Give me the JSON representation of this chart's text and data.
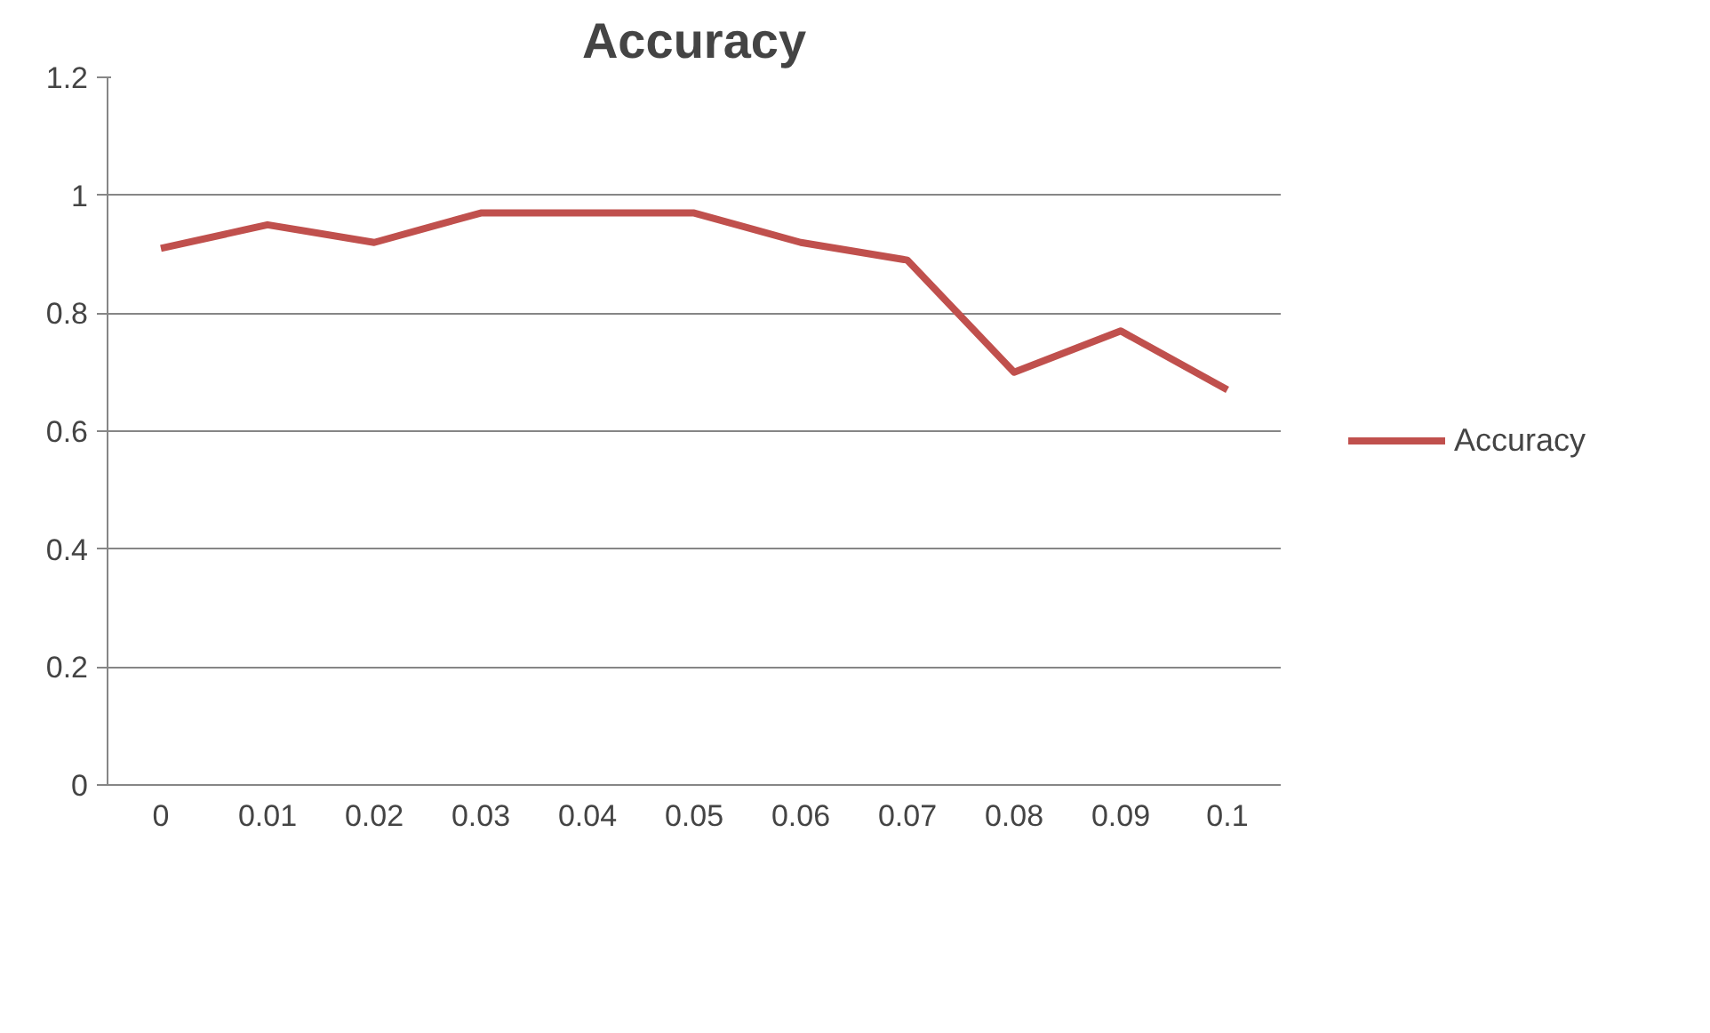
{
  "chart_data": {
    "type": "line",
    "title": "Accuracy",
    "categories": [
      "0",
      "0.01",
      "0.02",
      "0.03",
      "0.04",
      "0.05",
      "0.06",
      "0.07",
      "0.08",
      "0.09",
      "0.1"
    ],
    "series": [
      {
        "name": "Accuracy",
        "color": "#c0504d",
        "values": [
          0.91,
          0.95,
          0.92,
          0.97,
          0.97,
          0.97,
          0.92,
          0.89,
          0.7,
          0.77,
          0.67
        ]
      }
    ],
    "ylim": [
      0,
      1.2
    ],
    "yticks": [
      0,
      0.2,
      0.4,
      0.6,
      0.8,
      1,
      1.2
    ],
    "grid": "y",
    "legend": "right",
    "marker": "none",
    "line_style": "solid"
  }
}
